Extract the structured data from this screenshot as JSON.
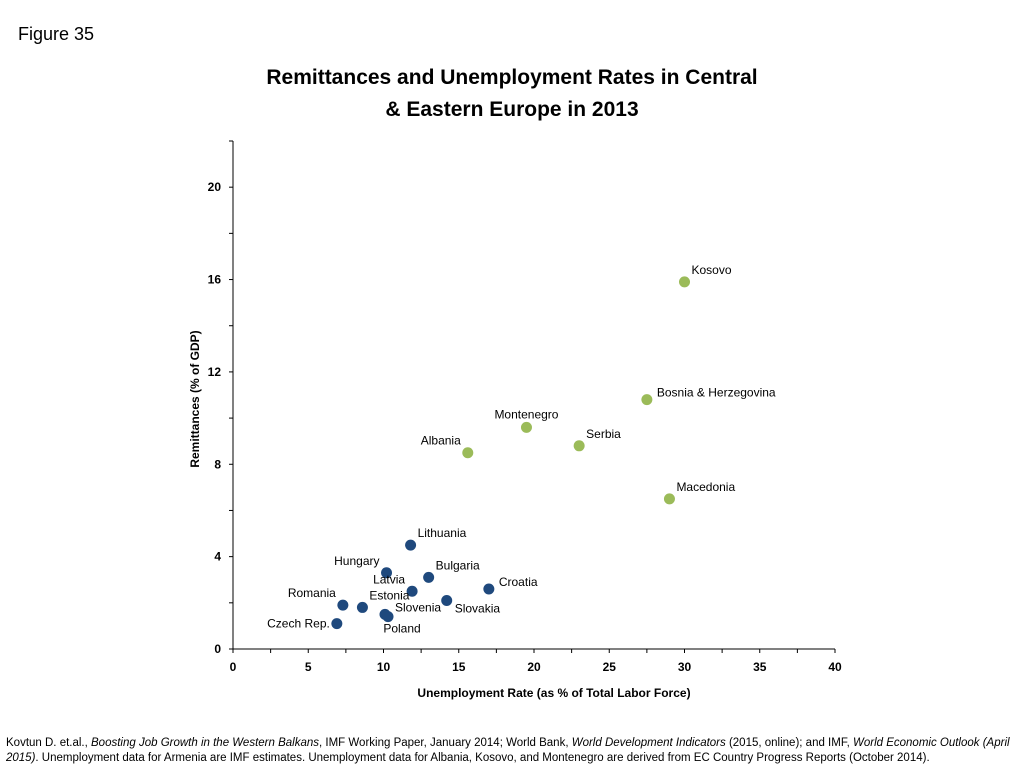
{
  "figure_label": "Figure 35",
  "chart_data": {
    "type": "scatter",
    "title_line1": "Remittances and Unemployment Rates in Central",
    "title_line2": "& Eastern Europe  in 2013",
    "xlabel": "Unemployment Rate (as % of Total Labor Force)",
    "ylabel": "Remittances (% of GDP)",
    "xlim": [
      0,
      40
    ],
    "ylim": [
      0,
      22
    ],
    "xticks": [
      0,
      5,
      10,
      15,
      20,
      25,
      30,
      35,
      40
    ],
    "yticks": [
      0,
      4,
      8,
      12,
      16,
      20
    ],
    "grid": false,
    "legend": "none",
    "colors": {
      "western_balkans": "#9BBB59",
      "central_eastern_europe": "#1F497D"
    },
    "points": [
      {
        "label": "Kosovo",
        "x": 30.0,
        "y": 15.9,
        "group": "western_balkans",
        "label_pos": "above-right"
      },
      {
        "label": "Bosnia & Herzegovina",
        "x": 27.5,
        "y": 10.8,
        "group": "western_balkans",
        "label_pos": "right"
      },
      {
        "label": "Montenegro",
        "x": 19.5,
        "y": 9.6,
        "group": "western_balkans",
        "label_pos": "above"
      },
      {
        "label": "Serbia",
        "x": 23.0,
        "y": 8.8,
        "group": "western_balkans",
        "label_pos": "above-right"
      },
      {
        "label": "Albania",
        "x": 15.6,
        "y": 8.5,
        "group": "western_balkans",
        "label_pos": "above-left"
      },
      {
        "label": "Macedonia",
        "x": 29.0,
        "y": 6.5,
        "group": "western_balkans",
        "label_pos": "above-right"
      },
      {
        "label": "Lithuania",
        "x": 11.8,
        "y": 4.5,
        "group": "central_eastern_europe",
        "label_pos": "above-right"
      },
      {
        "label": "Hungary",
        "x": 10.2,
        "y": 3.3,
        "group": "central_eastern_europe",
        "label_pos": "above-left"
      },
      {
        "label": "Bulgaria",
        "x": 13.0,
        "y": 3.1,
        "group": "central_eastern_europe",
        "label_pos": "above-right"
      },
      {
        "label": "Latvia",
        "x": 11.9,
        "y": 2.5,
        "group": "central_eastern_europe",
        "label_pos": "above-left"
      },
      {
        "label": "Croatia",
        "x": 17.0,
        "y": 2.6,
        "group": "central_eastern_europe",
        "label_pos": "right"
      },
      {
        "label": "Romania",
        "x": 7.3,
        "y": 1.9,
        "group": "central_eastern_europe",
        "label_pos": "above-left"
      },
      {
        "label": "Estonia",
        "x": 8.6,
        "y": 1.8,
        "group": "central_eastern_europe",
        "label_pos": "above-right"
      },
      {
        "label": "Slovakia",
        "x": 14.2,
        "y": 2.1,
        "group": "central_eastern_europe",
        "label_pos": "below-right"
      },
      {
        "label": "Slovenia",
        "x": 10.1,
        "y": 1.5,
        "group": "central_eastern_europe",
        "label_pos": "right"
      },
      {
        "label": "Poland",
        "x": 10.3,
        "y": 1.4,
        "group": "central_eastern_europe",
        "label_pos": "below"
      },
      {
        "label": "Czech Rep.",
        "x": 6.9,
        "y": 1.1,
        "group": "central_eastern_europe",
        "label_pos": "left"
      }
    ]
  },
  "source": {
    "part1": "Kovtun D. et.al., ",
    "part2": "Boosting Job Growth in the Western Balkans",
    "part3": ", IMF Working Paper, January 2014; World Bank, ",
    "part4": "World Development Indicators",
    "part5": " (2015, online); and IMF, ",
    "part6": "World Economic Outlook (April 2015)",
    "part7": ". Unemployment data for Armenia are  IMF estimates.  Unemployment data for Albania, Kosovo, and Montenegro are derived from EC Country Progress Reports (October 2014)."
  }
}
